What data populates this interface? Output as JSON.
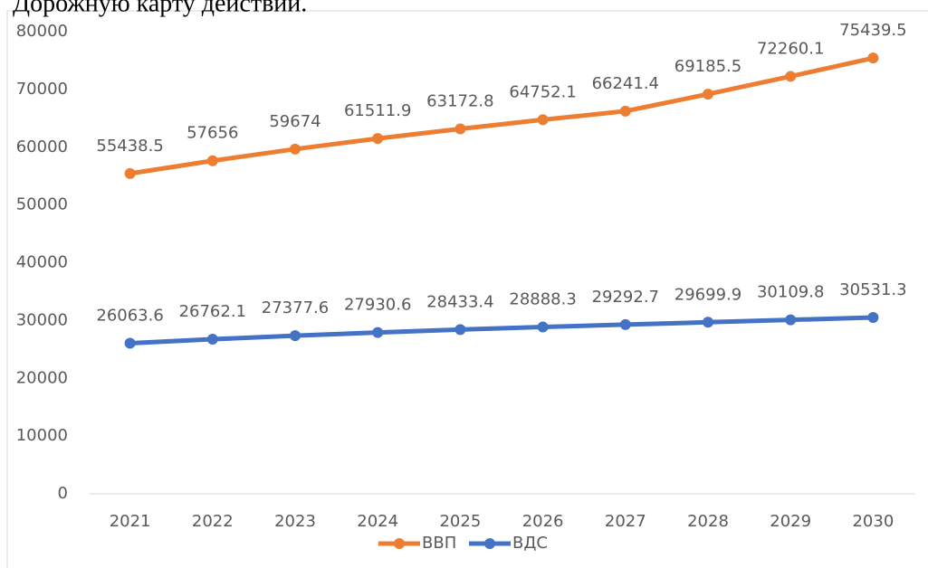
{
  "document_text": "Дорожную карту действий.",
  "chart_data": {
    "type": "line",
    "categories": [
      "2021",
      "2022",
      "2023",
      "2024",
      "2025",
      "2026",
      "2027",
      "2028",
      "2029",
      "2030"
    ],
    "series": [
      {
        "name": "ВВП",
        "color": "#ED7D31",
        "values": [
          55438.5,
          57656,
          59674,
          61511.9,
          63172.8,
          64752.1,
          66241.4,
          69185.5,
          72260.1,
          75439.5
        ]
      },
      {
        "name": "ВДС",
        "color": "#4472C4",
        "values": [
          26063.6,
          26762.1,
          27377.6,
          27930.6,
          28433.4,
          28888.3,
          29292.7,
          29699.9,
          30109.8,
          30531.3
        ]
      }
    ],
    "ylim": [
      0,
      80000
    ],
    "yticks": [
      0,
      10000,
      20000,
      30000,
      40000,
      50000,
      60000,
      70000,
      80000
    ],
    "grid": false,
    "legend": "bottom"
  }
}
